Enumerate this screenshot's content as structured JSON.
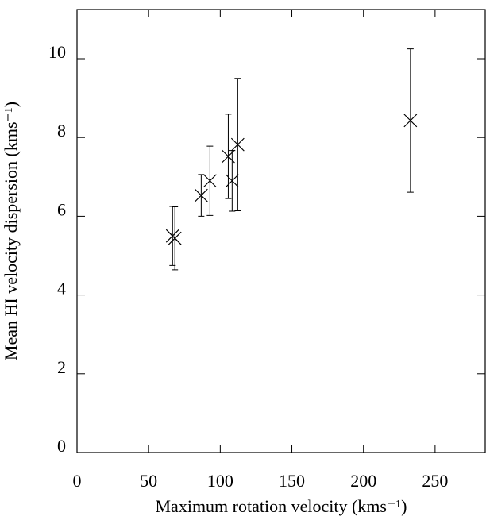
{
  "chart_data": {
    "type": "scatter",
    "xlabel": "Maximum rotation velocity (kms⁻¹)",
    "ylabel": "Mean HI velocity dispersion (kms⁻¹)",
    "x": [
      66.7,
      68.3,
      86.7,
      92.8,
      105.6,
      108.3,
      112.2,
      232.8
    ],
    "values": [
      5.5,
      5.44,
      6.53,
      6.9,
      7.52,
      6.9,
      7.82,
      8.43
    ],
    "errors": [
      0.75,
      0.8,
      0.53,
      0.88,
      1.07,
      0.77,
      1.68,
      1.82
    ],
    "color": "#000000",
    "xlim": [
      0,
      285
    ],
    "xticks": [
      0,
      50,
      100,
      150,
      200,
      250
    ],
    "ylim": [
      0,
      11.25
    ],
    "yticks": [
      0,
      2,
      4,
      6,
      8,
      10
    ],
    "grid": false
  }
}
